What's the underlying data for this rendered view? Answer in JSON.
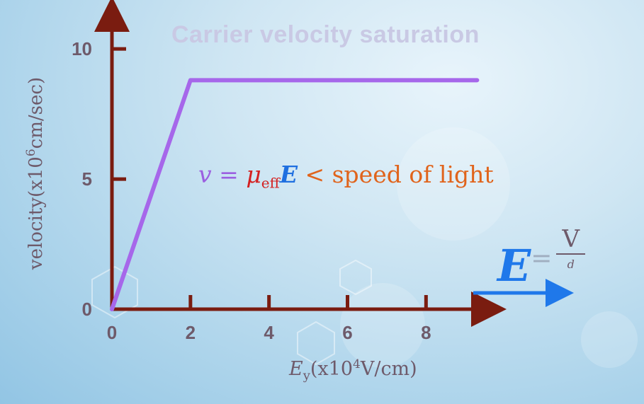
{
  "chart_data": {
    "type": "line",
    "title": "Carrier velocity saturation",
    "xlabel": {
      "base": "E",
      "sub": "y",
      "unit_pre": "(x10",
      "unit_exp": "4",
      "unit_post": "V/cm)"
    },
    "ylabel": {
      "pre": "velocity(x10",
      "exp": "6",
      "post": "cm/sec)"
    },
    "xlim": [
      0,
      9.6
    ],
    "ylim": [
      0,
      11.5
    ],
    "xticks": [
      0,
      2,
      4,
      6,
      8
    ],
    "yticks": [
      0,
      5,
      10
    ],
    "series": [
      {
        "x": [
          0,
          2,
          9.3
        ],
        "y": [
          0,
          8.8,
          8.8
        ]
      }
    ],
    "annotations": {
      "equation": {
        "v": "v",
        "eq": "=",
        "mu": "μ",
        "mu_sub": "eff",
        "E": "E",
        "rest": "< speed of light"
      },
      "field": {
        "E": "E",
        "eq": "=",
        "num": "V",
        "den": "d"
      }
    },
    "colors": {
      "axis": "#7a1c10",
      "line": "#a667ea",
      "tick_label": "#6e5a6a",
      "title": "#c9c9e4",
      "arrow": "#1f78ea"
    }
  }
}
